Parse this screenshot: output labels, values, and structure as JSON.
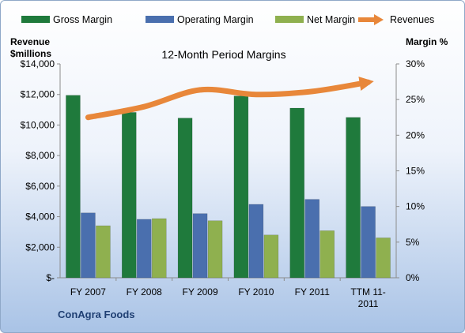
{
  "chart_data": {
    "type": "bar",
    "title": "12-Month Period Margins",
    "company": "ConAgra Foods",
    "y_left_label": [
      "Revenue",
      "$millions"
    ],
    "y_right_label": "Margin %",
    "categories": [
      [
        "FY 2007"
      ],
      [
        "FY 2008"
      ],
      [
        "FY 2009"
      ],
      [
        "FY 2010"
      ],
      [
        "FY 2011"
      ],
      [
        "TTM 11-",
        "2011"
      ]
    ],
    "y_left_ticks": [
      "$-",
      "$2,000",
      "$4,000",
      "$6,000",
      "$8,000",
      "$10,000",
      "$12,000",
      "$14,000"
    ],
    "y_right_ticks": [
      "0%",
      "5%",
      "10%",
      "15%",
      "20%",
      "25%",
      "30%"
    ],
    "ylim_left": [
      0,
      14000
    ],
    "ylim_right": [
      0,
      30
    ],
    "series": [
      {
        "name": "Gross Margin",
        "axis": "right",
        "color": "#1f7a3c",
        "values": [
          25.6,
          23.2,
          22.4,
          25.5,
          23.8,
          22.5
        ]
      },
      {
        "name": "Operating Margin",
        "axis": "right",
        "color": "#4a6fae",
        "values": [
          9.1,
          8.2,
          9.0,
          10.3,
          11.0,
          10.0
        ]
      },
      {
        "name": "Net Margin",
        "axis": "right",
        "color": "#8fb04f",
        "values": [
          7.3,
          8.3,
          8.0,
          6.0,
          6.6,
          5.6
        ]
      },
      {
        "name": "Revenues",
        "axis": "left",
        "type": "line",
        "color": "#e8873a",
        "values": [
          10500,
          11200,
          12300,
          12000,
          12200,
          12800
        ]
      }
    ],
    "legend_position": "top",
    "grid": false
  }
}
